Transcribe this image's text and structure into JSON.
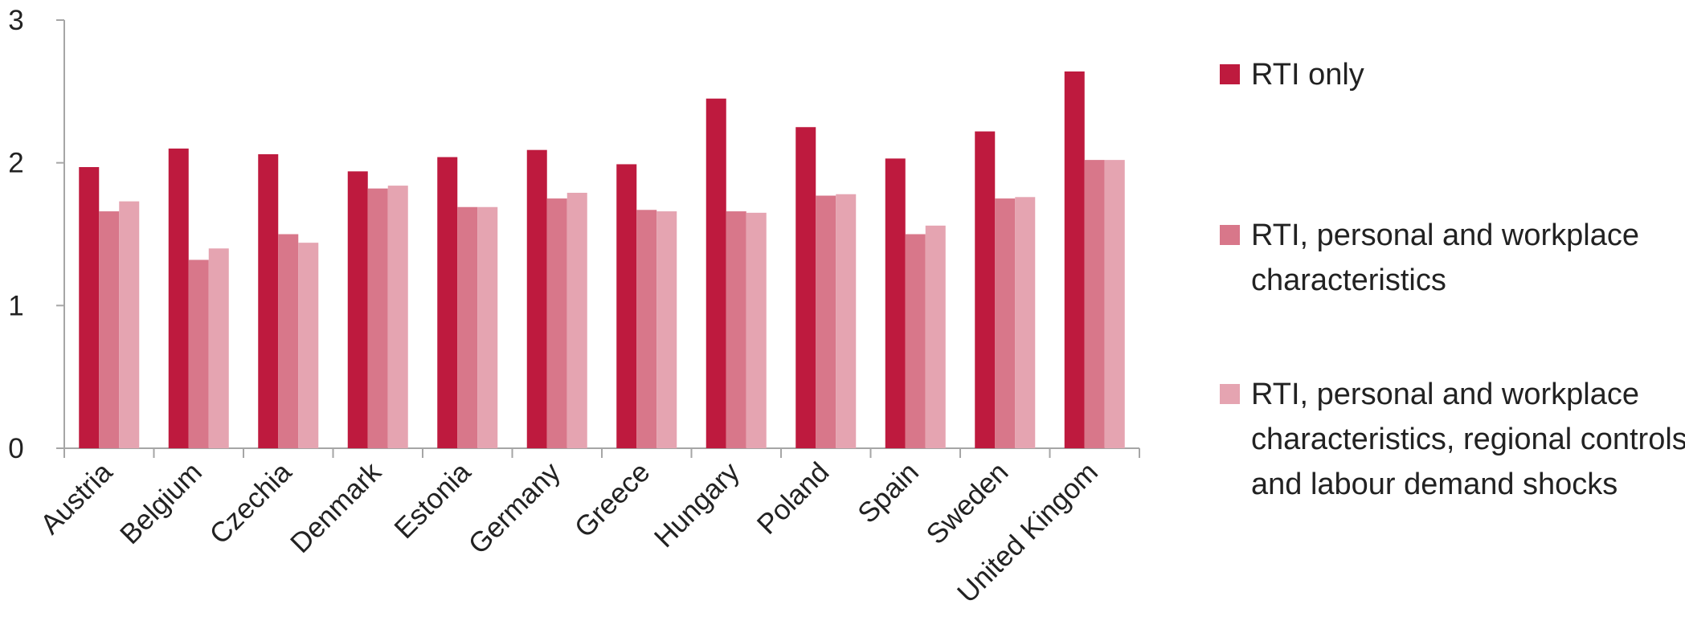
{
  "chart_data": {
    "type": "bar",
    "title": "",
    "xlabel": "",
    "ylabel": "",
    "ylim": [
      0,
      3
    ],
    "yticks": [
      0,
      1,
      2,
      3
    ],
    "grid": false,
    "legend_position": "right",
    "categories": [
      "Austria",
      "Belgium",
      "Czechia",
      "Denmark",
      "Estonia",
      "Germany",
      "Greece",
      "Hungary",
      "Poland",
      "Spain",
      "Sweden",
      "United Kingom"
    ],
    "series": [
      {
        "name": "RTI only",
        "color": "#be1a3e",
        "values": [
          1.97,
          2.1,
          2.06,
          1.94,
          2.04,
          2.09,
          1.99,
          2.45,
          2.25,
          2.03,
          2.22,
          2.64
        ]
      },
      {
        "name": "RTI, personal and workplace characteristics",
        "color": "#d8778a",
        "values": [
          1.66,
          1.32,
          1.5,
          1.82,
          1.69,
          1.75,
          1.67,
          1.66,
          1.77,
          1.5,
          1.75,
          2.02
        ]
      },
      {
        "name": "RTI, personal and workplace characteristics, regional controls and labour demand shocks",
        "color": "#e5a4b1",
        "values": [
          1.73,
          1.4,
          1.44,
          1.84,
          1.69,
          1.79,
          1.66,
          1.65,
          1.78,
          1.56,
          1.76,
          2.02
        ]
      }
    ],
    "legend_lines": [
      [
        "RTI only"
      ],
      [
        "RTI, personal and workplace",
        "characteristics"
      ],
      [
        "RTI, personal and workplace",
        "characteristics, regional controls",
        "and labour demand shocks"
      ]
    ]
  }
}
